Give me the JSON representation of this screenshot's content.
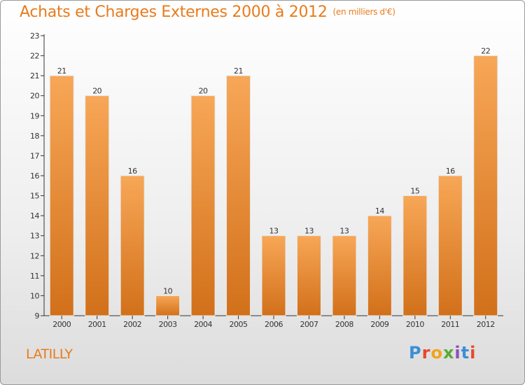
{
  "header": {
    "title": "Achats et Charges Externes 2000 à 2012",
    "unit": "(en milliers d'€)"
  },
  "footer": {
    "place": "LATILLY",
    "logo": [
      "P",
      "r",
      "o",
      "x",
      "i",
      "t",
      "i"
    ]
  },
  "colors": {
    "accent": "#e87b1c",
    "bar_top": "#f7a757",
    "bar_bottom": "#d2701a",
    "axis": "#333333"
  },
  "chart_data": {
    "type": "bar",
    "categories": [
      "2000",
      "2001",
      "2002",
      "2003",
      "2004",
      "2005",
      "2006",
      "2007",
      "2008",
      "2009",
      "2010",
      "2011",
      "2012"
    ],
    "values": [
      21,
      20,
      16,
      10,
      20,
      21,
      13,
      13,
      13,
      14,
      15,
      16,
      22
    ],
    "title": "Achats et Charges Externes 2000 à 2012",
    "subtitle": "(en milliers d'€)",
    "ylim": [
      9,
      23
    ],
    "yticks": [
      9,
      10,
      11,
      12,
      13,
      14,
      15,
      16,
      17,
      18,
      19,
      20,
      21,
      22,
      23
    ],
    "grid": false,
    "legend": "none"
  }
}
